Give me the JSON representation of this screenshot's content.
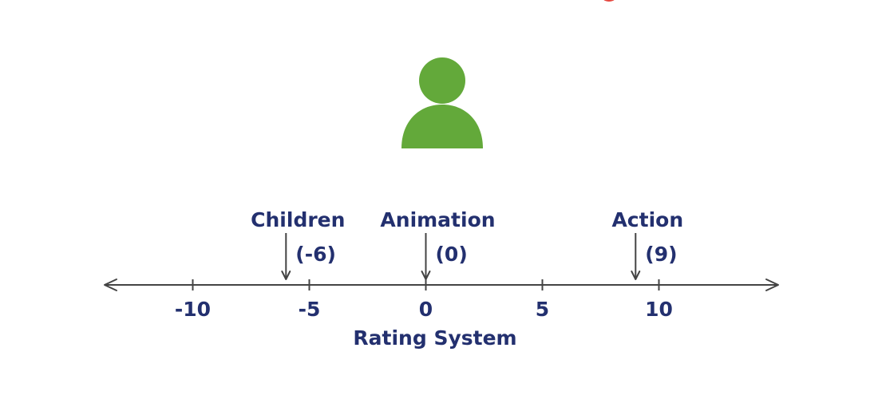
{
  "colors": {
    "text": "#23306f",
    "axis": "#444444",
    "person": "#63a93a",
    "accent": "#e5473f"
  },
  "icons": {
    "user": "person-silhouette-icon",
    "top_clip": "red-circle-partial-icon"
  },
  "number_line": {
    "title": "Rating System",
    "range": [
      -14,
      14
    ],
    "ticks": [
      {
        "value": -10,
        "label": "-10"
      },
      {
        "value": -5,
        "label": "-5"
      },
      {
        "value": 0,
        "label": "0"
      },
      {
        "value": 5,
        "label": "5"
      },
      {
        "value": 10,
        "label": "10"
      }
    ]
  },
  "genres": [
    {
      "name": "Children",
      "rating": -6,
      "rating_label": "(-6)"
    },
    {
      "name": "Animation",
      "rating": 0,
      "rating_label": "(0)"
    },
    {
      "name": "Action",
      "rating": 9,
      "rating_label": "(9)"
    }
  ]
}
